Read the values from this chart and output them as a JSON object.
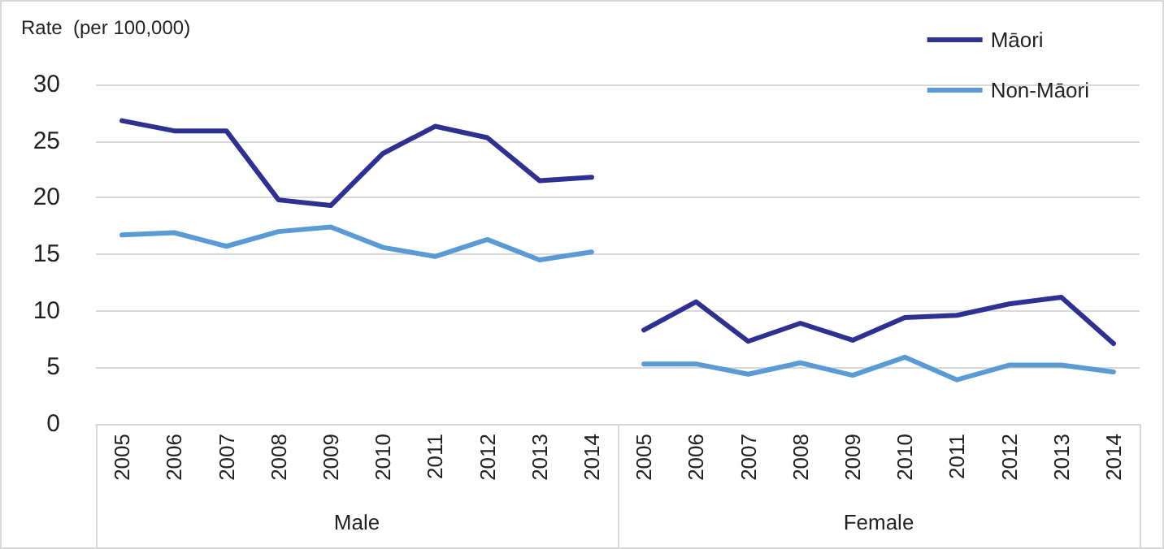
{
  "chart_data": {
    "type": "line",
    "ylabel": "Rate  (per 100,000)",
    "categories": [
      "2005",
      "2006",
      "2007",
      "2008",
      "2009",
      "2010",
      "2011",
      "2012",
      "2013",
      "2014",
      "2005",
      "2006",
      "2007",
      "2008",
      "2009",
      "2010",
      "2011",
      "2012",
      "2013",
      "2014"
    ],
    "annotations": [
      "Male",
      "Female"
    ],
    "series": [
      {
        "name": "Māori",
        "color": "#2e3192",
        "values": [
          26.8,
          25.9,
          25.9,
          19.8,
          19.3,
          23.9,
          26.3,
          25.3,
          21.5,
          21.8,
          8.3,
          10.8,
          7.3,
          8.9,
          7.4,
          9.4,
          9.6,
          10.6,
          11.2,
          7.1
        ]
      },
      {
        "name": "Non-Māori",
        "color": "#5b9bd5",
        "values": [
          16.7,
          16.9,
          15.7,
          17.0,
          17.4,
          15.6,
          14.8,
          16.3,
          14.5,
          15.2,
          5.3,
          5.3,
          4.4,
          5.4,
          4.3,
          5.9,
          3.9,
          5.2,
          5.2,
          4.6
        ]
      }
    ],
    "ylim": [
      0,
      30
    ],
    "yticks": [
      0,
      5,
      10,
      15,
      20,
      25,
      30
    ],
    "grid": "y",
    "legend": "top right",
    "marker": "none",
    "line_style": "solid"
  }
}
